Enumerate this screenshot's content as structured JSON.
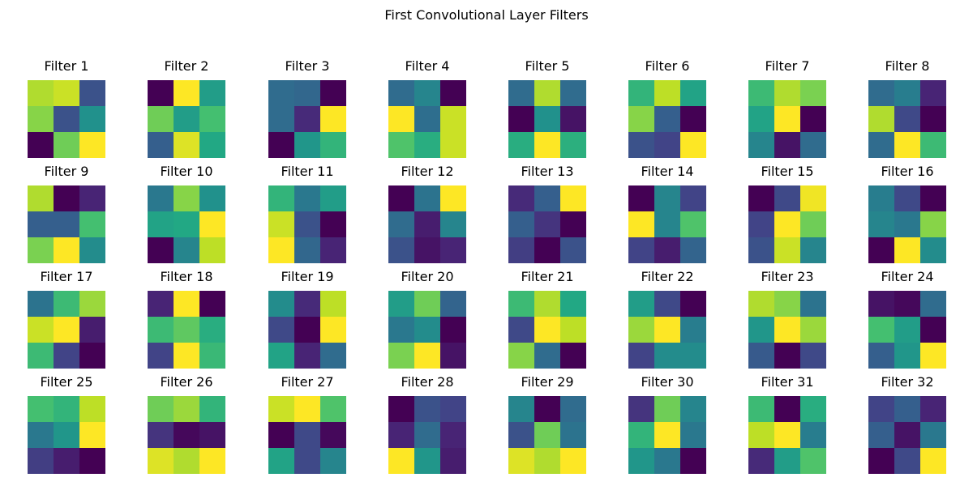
{
  "chart_data": {
    "type": "heatmap",
    "title": "First Convolutional Layer Filters",
    "grid_rows": 4,
    "grid_cols": 8,
    "colormap": "viridis",
    "filter_size": [
      3,
      3
    ],
    "filters": [
      {
        "label": "Filter 1",
        "values": [
          [
            0.88,
            0.92,
            0.25
          ],
          [
            0.82,
            0.25,
            0.5
          ],
          [
            0.0,
            0.78,
            1.0
          ]
        ]
      },
      {
        "label": "Filter 2",
        "values": [
          [
            0.0,
            1.0,
            0.55
          ],
          [
            0.78,
            0.55,
            0.7
          ],
          [
            0.3,
            0.95,
            0.6
          ]
        ]
      },
      {
        "label": "Filter 3",
        "values": [
          [
            0.35,
            0.33,
            0.0
          ],
          [
            0.35,
            0.12,
            1.0
          ],
          [
            0.0,
            0.52,
            0.65
          ]
        ]
      },
      {
        "label": "Filter 4",
        "values": [
          [
            0.35,
            0.45,
            0.0
          ],
          [
            1.0,
            0.36,
            0.92
          ],
          [
            0.72,
            0.62,
            0.92
          ]
        ]
      },
      {
        "label": "Filter 5",
        "values": [
          [
            0.35,
            0.88,
            0.35
          ],
          [
            0.0,
            0.5,
            0.05
          ],
          [
            0.62,
            1.0,
            0.63
          ]
        ]
      },
      {
        "label": "Filter 6",
        "values": [
          [
            0.65,
            0.9,
            0.58
          ],
          [
            0.82,
            0.3,
            0.0
          ],
          [
            0.25,
            0.2,
            1.0
          ]
        ]
      },
      {
        "label": "Filter 7",
        "values": [
          [
            0.68,
            0.88,
            0.8
          ],
          [
            0.58,
            1.0,
            0.0
          ],
          [
            0.45,
            0.05,
            0.35
          ]
        ]
      },
      {
        "label": "Filter 8",
        "values": [
          [
            0.35,
            0.42,
            0.1
          ],
          [
            0.88,
            0.22,
            0.0
          ],
          [
            0.35,
            1.0,
            0.68
          ]
        ]
      },
      {
        "label": "Filter 9",
        "values": [
          [
            0.88,
            0.0,
            0.1
          ],
          [
            0.3,
            0.3,
            0.7
          ],
          [
            0.8,
            1.0,
            0.48
          ]
        ]
      },
      {
        "label": "Filter 10",
        "values": [
          [
            0.4,
            0.82,
            0.5
          ],
          [
            0.58,
            0.6,
            1.0
          ],
          [
            0.0,
            0.45,
            0.9
          ]
        ]
      },
      {
        "label": "Filter 11",
        "values": [
          [
            0.65,
            0.4,
            0.55
          ],
          [
            0.92,
            0.25,
            0.0
          ],
          [
            1.0,
            0.33,
            0.1
          ]
        ]
      },
      {
        "label": "Filter 12",
        "values": [
          [
            0.0,
            0.38,
            1.0
          ],
          [
            0.35,
            0.08,
            0.45
          ],
          [
            0.25,
            0.05,
            0.1
          ]
        ]
      },
      {
        "label": "Filter 13",
        "values": [
          [
            0.12,
            0.3,
            1.0
          ],
          [
            0.3,
            0.15,
            0.0
          ],
          [
            0.18,
            0.0,
            0.25
          ]
        ]
      },
      {
        "label": "Filter 14",
        "values": [
          [
            0.0,
            0.45,
            0.2
          ],
          [
            1.0,
            0.45,
            0.72
          ],
          [
            0.2,
            0.08,
            0.32
          ]
        ]
      },
      {
        "label": "Filter 15",
        "values": [
          [
            0.0,
            0.22,
            0.98
          ],
          [
            0.2,
            1.0,
            0.78
          ],
          [
            0.25,
            0.92,
            0.45
          ]
        ]
      },
      {
        "label": "Filter 16",
        "values": [
          [
            0.42,
            0.22,
            0.0
          ],
          [
            0.45,
            0.4,
            0.82
          ],
          [
            0.0,
            1.0,
            0.48
          ]
        ]
      },
      {
        "label": "Filter 17",
        "values": [
          [
            0.38,
            0.68,
            0.85
          ],
          [
            0.92,
            1.0,
            0.08
          ],
          [
            0.68,
            0.2,
            0.0
          ]
        ]
      },
      {
        "label": "Filter 18",
        "values": [
          [
            0.1,
            1.0,
            0.0
          ],
          [
            0.68,
            0.75,
            0.62
          ],
          [
            0.2,
            1.0,
            0.67
          ]
        ]
      },
      {
        "label": "Filter 19",
        "values": [
          [
            0.48,
            0.12,
            0.9
          ],
          [
            0.22,
            0.0,
            1.0
          ],
          [
            0.58,
            0.1,
            0.35
          ]
        ]
      },
      {
        "label": "Filter 20",
        "values": [
          [
            0.55,
            0.78,
            0.32
          ],
          [
            0.4,
            0.48,
            0.0
          ],
          [
            0.8,
            1.0,
            0.05
          ]
        ]
      },
      {
        "label": "Filter 21",
        "values": [
          [
            0.68,
            0.88,
            0.6
          ],
          [
            0.22,
            1.0,
            0.9
          ],
          [
            0.82,
            0.35,
            0.0
          ]
        ]
      },
      {
        "label": "Filter 22",
        "values": [
          [
            0.55,
            0.22,
            0.0
          ],
          [
            0.85,
            1.0,
            0.42
          ],
          [
            0.2,
            0.48,
            0.48
          ]
        ]
      },
      {
        "label": "Filter 23",
        "values": [
          [
            0.88,
            0.82,
            0.38
          ],
          [
            0.52,
            1.0,
            0.85
          ],
          [
            0.28,
            0.0,
            0.22
          ]
        ]
      },
      {
        "label": "Filter 24",
        "values": [
          [
            0.05,
            0.02,
            0.35
          ],
          [
            0.7,
            0.55,
            0.0
          ],
          [
            0.3,
            0.52,
            1.0
          ]
        ]
      },
      {
        "label": "Filter 25",
        "values": [
          [
            0.7,
            0.65,
            0.9
          ],
          [
            0.4,
            0.52,
            1.0
          ],
          [
            0.18,
            0.08,
            0.0
          ]
        ]
      },
      {
        "label": "Filter 26",
        "values": [
          [
            0.78,
            0.85,
            0.65
          ],
          [
            0.15,
            0.02,
            0.05
          ],
          [
            0.95,
            0.88,
            1.0
          ]
        ]
      },
      {
        "label": "Filter 27",
        "values": [
          [
            0.92,
            1.0,
            0.72
          ],
          [
            0.0,
            0.22,
            0.02
          ],
          [
            0.58,
            0.22,
            0.45
          ]
        ]
      },
      {
        "label": "Filter 28",
        "values": [
          [
            0.0,
            0.25,
            0.2
          ],
          [
            0.1,
            0.35,
            0.1
          ],
          [
            1.0,
            0.52,
            0.08
          ]
        ]
      },
      {
        "label": "Filter 29",
        "values": [
          [
            0.45,
            0.0,
            0.35
          ],
          [
            0.25,
            0.78,
            0.38
          ],
          [
            0.95,
            0.88,
            1.0
          ]
        ]
      },
      {
        "label": "Filter 30",
        "values": [
          [
            0.15,
            0.78,
            0.45
          ],
          [
            0.65,
            1.0,
            0.4
          ],
          [
            0.52,
            0.4,
            0.0
          ]
        ]
      },
      {
        "label": "Filter 31",
        "values": [
          [
            0.68,
            0.0,
            0.62
          ],
          [
            0.9,
            1.0,
            0.42
          ],
          [
            0.12,
            0.55,
            0.72
          ]
        ]
      },
      {
        "label": "Filter 32",
        "values": [
          [
            0.2,
            0.3,
            0.1
          ],
          [
            0.3,
            0.05,
            0.4
          ],
          [
            0.0,
            0.22,
            1.0
          ]
        ]
      }
    ]
  }
}
